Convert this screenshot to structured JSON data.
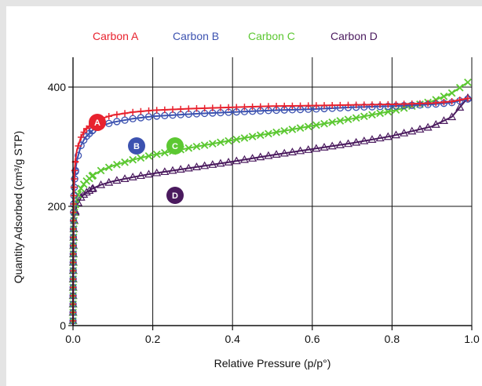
{
  "chart_data": {
    "type": "line",
    "title": "",
    "xlabel": "Relative Pressure (p/p°)",
    "ylabel": "Quantity Adsorbed (cm³/g STP)",
    "xlim": [
      0.0,
      1.0
    ],
    "ylim": [
      0,
      450
    ],
    "xticks": [
      "0.0",
      "0.2",
      "0.4",
      "0.6",
      "0.8",
      "1.0"
    ],
    "xtick_values": [
      0.0,
      0.2,
      0.4,
      0.6,
      0.8,
      1.0
    ],
    "yticks": [
      "0",
      "200",
      "400"
    ],
    "ytick_values": [
      0,
      200,
      400
    ],
    "grid": true,
    "legend_position": "top",
    "series": [
      {
        "name": "Carbon A",
        "label": "A",
        "color": "#e8222e",
        "marker": "plus",
        "x": [
          0.0,
          0.0005,
          0.001,
          0.002,
          0.004,
          0.007,
          0.01,
          0.02,
          0.03,
          0.05,
          0.07,
          0.1,
          0.15,
          0.2,
          0.3,
          0.4,
          0.5,
          0.6,
          0.7,
          0.8,
          0.9,
          0.95,
          0.99
        ],
        "y": [
          0,
          120,
          180,
          230,
          262,
          282,
          295,
          316,
          328,
          340,
          347,
          353,
          358,
          361,
          364,
          366,
          368,
          369,
          370,
          371,
          373,
          376,
          381
        ]
      },
      {
        "name": "Carbon B",
        "label": "B",
        "color": "#3c52b0",
        "marker": "circle",
        "x": [
          0.0,
          0.0005,
          0.001,
          0.002,
          0.004,
          0.007,
          0.01,
          0.02,
          0.03,
          0.05,
          0.07,
          0.1,
          0.15,
          0.2,
          0.3,
          0.4,
          0.5,
          0.6,
          0.7,
          0.8,
          0.9,
          0.95,
          0.99
        ],
        "y": [
          0,
          110,
          165,
          210,
          245,
          265,
          278,
          302,
          315,
          328,
          335,
          341,
          347,
          351,
          355,
          358,
          361,
          363,
          366,
          368,
          371,
          374,
          380
        ]
      },
      {
        "name": "Carbon C",
        "label": "C",
        "color": "#5cc832",
        "marker": "x",
        "x": [
          0.0,
          0.0005,
          0.001,
          0.002,
          0.004,
          0.007,
          0.01,
          0.02,
          0.03,
          0.05,
          0.07,
          0.1,
          0.15,
          0.2,
          0.3,
          0.4,
          0.5,
          0.6,
          0.7,
          0.8,
          0.9,
          0.95,
          0.99
        ],
        "y": [
          0,
          80,
          130,
          170,
          195,
          207,
          215,
          230,
          240,
          252,
          260,
          268,
          278,
          286,
          299,
          311,
          323,
          335,
          347,
          360,
          376,
          390,
          408
        ]
      },
      {
        "name": "Carbon D",
        "label": "D",
        "color": "#4a1a5e",
        "marker": "triangle",
        "x": [
          0.0,
          0.0005,
          0.001,
          0.002,
          0.004,
          0.007,
          0.01,
          0.02,
          0.03,
          0.05,
          0.07,
          0.1,
          0.15,
          0.2,
          0.3,
          0.4,
          0.5,
          0.6,
          0.7,
          0.8,
          0.9,
          0.95,
          0.99
        ],
        "y": [
          0,
          80,
          125,
          162,
          185,
          195,
          202,
          215,
          222,
          230,
          236,
          242,
          249,
          255,
          265,
          275,
          286,
          296,
          306,
          318,
          334,
          350,
          382
        ]
      }
    ]
  }
}
